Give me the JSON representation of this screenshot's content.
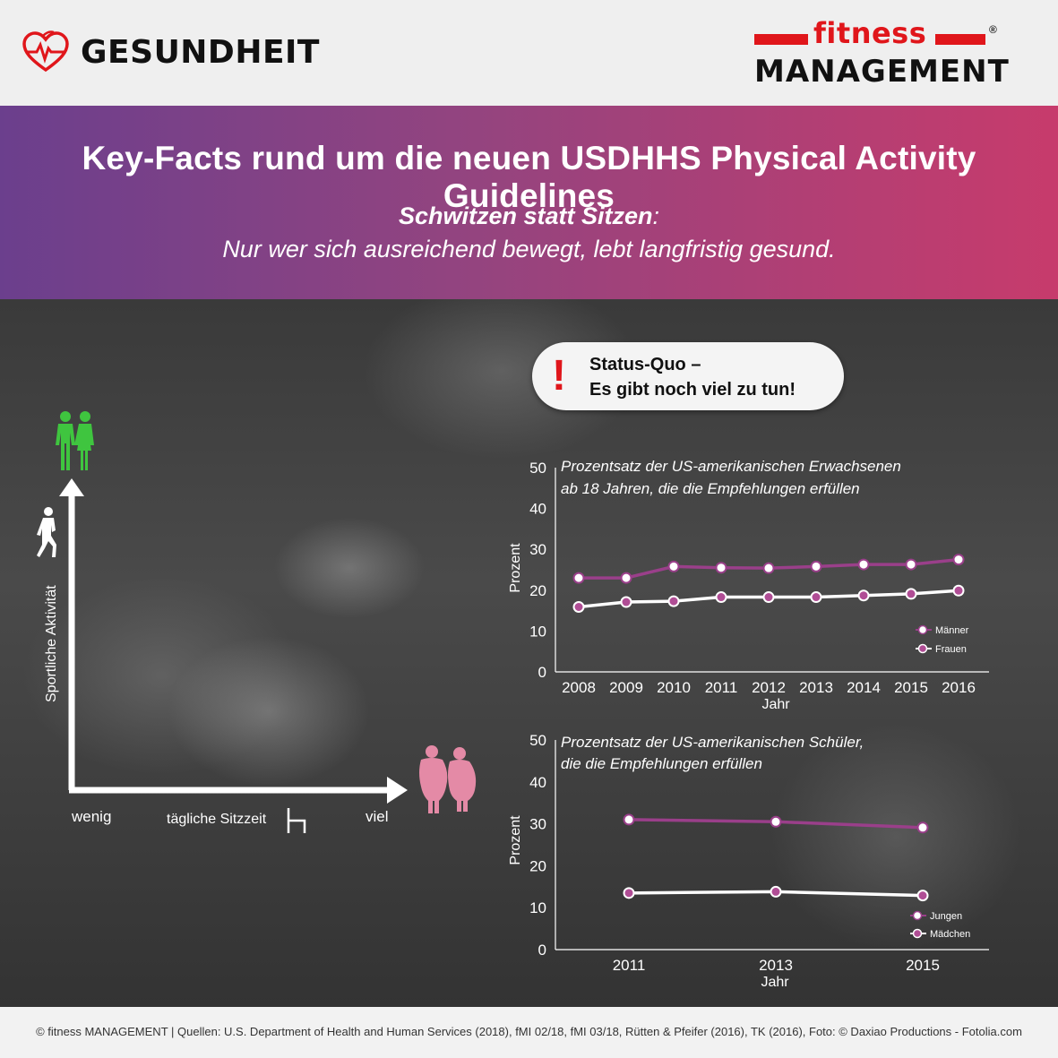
{
  "header": {
    "section_label": "GESUNDHEIT",
    "section_icon": "heart-pulse-icon",
    "logo_top": "fitness",
    "logo_bottom": "MANAGEMENT",
    "logo_reg": "®",
    "brand_color": "#e0161b"
  },
  "banner": {
    "title": "Key-Facts rund um die neuen USDHHS Physical Activity Guidelines",
    "subtitle_bold": "Schwitzen statt Sitzen",
    "subtitle_colon": ":",
    "subtitle_line2": "Nur wer sich ausreichend bewegt, lebt langfristig gesund.",
    "gradient_start": "#6b3f8d",
    "gradient_end": "#c73b6c"
  },
  "status": {
    "mark": "!",
    "line1": "Status-Quo –",
    "line2": "Es gibt noch viel zu tun!"
  },
  "diagram": {
    "y_axis_label": "Sportliche Aktivität",
    "x_axis_label": "tägliche Sitzzeit",
    "x_low": "wenig",
    "x_high": "viel",
    "fit_color": "#3fc53f",
    "overweight_color": "#e48aa6"
  },
  "chart_data": [
    {
      "type": "line",
      "title_line1": "Prozentsatz der US-amerikanischen Erwachsenen",
      "title_line2": "ab 18 Jahren, die die Empfehlungen erfüllen",
      "xlabel": "Jahr",
      "ylabel": "Prozent",
      "ylim": [
        0,
        50
      ],
      "yticks": [
        "0",
        "10",
        "20",
        "30",
        "40",
        "50"
      ],
      "categories": [
        "2008",
        "2009",
        "2010",
        "2011",
        "2012",
        "2013",
        "2014",
        "2015",
        "2016"
      ],
      "series": [
        {
          "name": "Männer",
          "color": "#9a3f8a",
          "values": [
            23,
            23,
            25.8,
            25.5,
            25.4,
            25.8,
            26.3,
            26.3,
            27.5
          ]
        },
        {
          "name": "Frauen",
          "color": "#ffffff",
          "values": [
            15.9,
            17.1,
            17.3,
            18.3,
            18.3,
            18.3,
            18.7,
            19.1,
            19.9
          ]
        }
      ],
      "legend_position": "bottom-right"
    },
    {
      "type": "line",
      "title_line1": "Prozentsatz der US-amerikanischen Schüler,",
      "title_line2": "die die Empfehlungen erfüllen",
      "xlabel": "Jahr",
      "ylabel": "Prozent",
      "ylim": [
        0,
        50
      ],
      "yticks": [
        "0",
        "10",
        "20",
        "30",
        "40",
        "50"
      ],
      "categories": [
        "2011",
        "2013",
        "2015"
      ],
      "series": [
        {
          "name": "Jungen",
          "color": "#9a3f8a",
          "values": [
            31,
            30.5,
            29.1
          ]
        },
        {
          "name": "Mädchen",
          "color": "#ffffff",
          "values": [
            13.5,
            13.8,
            12.9
          ]
        }
      ],
      "legend_position": "bottom-right"
    }
  ],
  "footer": {
    "text": "© fitness MANAGEMENT  |  Quellen: U.S. Department of Health and Human Services (2018), fMI 02/18, fMI 03/18, Rütten & Pfeifer (2016), TK (2016), Foto: © Daxiao Productions - Fotolia.com"
  }
}
